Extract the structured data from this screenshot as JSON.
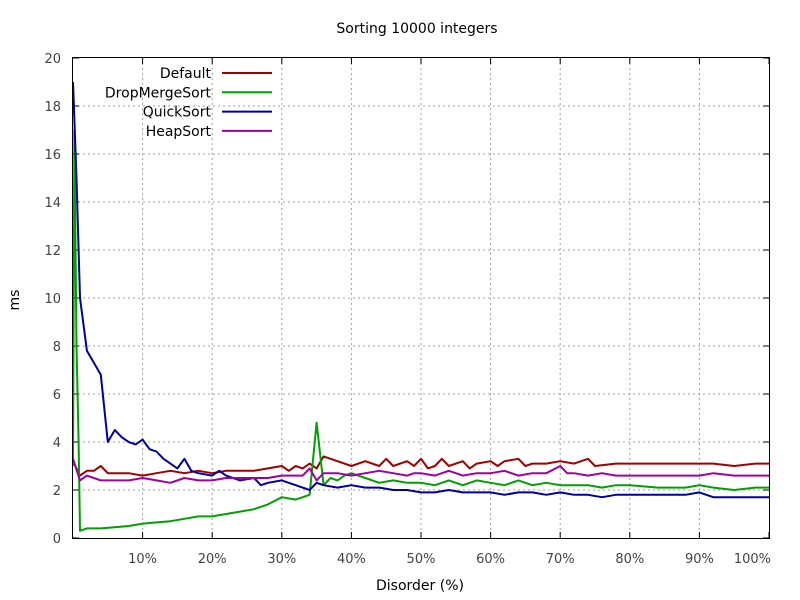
{
  "chart_data": {
    "type": "line",
    "title": "Sorting 10000 integers",
    "xlabel": "Disorder (%)",
    "ylabel": "ms",
    "xlim": [
      0,
      100
    ],
    "ylim": [
      0,
      20
    ],
    "grid": true,
    "legend_position": "top-left",
    "x_ticks": [
      10,
      20,
      30,
      40,
      50,
      60,
      70,
      80,
      90,
      100
    ],
    "x_tick_labels": [
      "10%",
      "20%",
      "30%",
      "40%",
      "50%",
      "60%",
      "70%",
      "80%",
      "90%",
      "100%"
    ],
    "y_ticks": [
      0,
      2,
      4,
      6,
      8,
      10,
      12,
      14,
      16,
      18,
      20
    ],
    "y_tick_labels": [
      "0",
      "2",
      "4",
      "6",
      "8",
      "10",
      "12",
      "14",
      "16",
      "18",
      "20"
    ],
    "series": [
      {
        "name": "Default",
        "color": "#a00000",
        "points": [
          [
            0,
            3.2
          ],
          [
            1,
            2.6
          ],
          [
            2,
            2.8
          ],
          [
            3,
            2.8
          ],
          [
            4,
            3.0
          ],
          [
            5,
            2.7
          ],
          [
            6,
            2.7
          ],
          [
            8,
            2.7
          ],
          [
            10,
            2.6
          ],
          [
            12,
            2.7
          ],
          [
            14,
            2.8
          ],
          [
            16,
            2.7
          ],
          [
            18,
            2.8
          ],
          [
            20,
            2.7
          ],
          [
            22,
            2.8
          ],
          [
            24,
            2.8
          ],
          [
            26,
            2.8
          ],
          [
            28,
            2.9
          ],
          [
            30,
            3.0
          ],
          [
            31,
            2.8
          ],
          [
            32,
            3.0
          ],
          [
            33,
            2.9
          ],
          [
            34,
            3.1
          ],
          [
            35,
            2.9
          ],
          [
            36,
            3.4
          ],
          [
            38,
            3.2
          ],
          [
            40,
            3.0
          ],
          [
            42,
            3.2
          ],
          [
            44,
            3.0
          ],
          [
            45,
            3.3
          ],
          [
            46,
            3.0
          ],
          [
            48,
            3.2
          ],
          [
            49,
            3.0
          ],
          [
            50,
            3.3
          ],
          [
            51,
            2.9
          ],
          [
            52,
            3.0
          ],
          [
            53,
            3.3
          ],
          [
            54,
            3.0
          ],
          [
            56,
            3.2
          ],
          [
            57,
            2.9
          ],
          [
            58,
            3.1
          ],
          [
            60,
            3.2
          ],
          [
            61,
            3.0
          ],
          [
            62,
            3.2
          ],
          [
            64,
            3.3
          ],
          [
            65,
            3.0
          ],
          [
            66,
            3.1
          ],
          [
            68,
            3.1
          ],
          [
            70,
            3.2
          ],
          [
            72,
            3.1
          ],
          [
            74,
            3.3
          ],
          [
            75,
            3.0
          ],
          [
            78,
            3.1
          ],
          [
            80,
            3.1
          ],
          [
            85,
            3.1
          ],
          [
            90,
            3.1
          ],
          [
            92,
            3.1
          ],
          [
            95,
            3.0
          ],
          [
            98,
            3.1
          ],
          [
            100,
            3.1
          ]
        ]
      },
      {
        "name": "DropMergeSort",
        "color": "#00a000",
        "points": [
          [
            0,
            3.0
          ],
          [
            0.2,
            17.0
          ],
          [
            0.5,
            8.0
          ],
          [
            0.8,
            4.0
          ],
          [
            1,
            0.3
          ],
          [
            2,
            0.4
          ],
          [
            4,
            0.4
          ],
          [
            6,
            0.45
          ],
          [
            8,
            0.5
          ],
          [
            10,
            0.6
          ],
          [
            12,
            0.65
          ],
          [
            14,
            0.7
          ],
          [
            16,
            0.8
          ],
          [
            18,
            0.9
          ],
          [
            20,
            0.9
          ],
          [
            22,
            1.0
          ],
          [
            24,
            1.1
          ],
          [
            26,
            1.2
          ],
          [
            28,
            1.4
          ],
          [
            30,
            1.7
          ],
          [
            32,
            1.6
          ],
          [
            33,
            1.7
          ],
          [
            34,
            1.8
          ],
          [
            35,
            4.8
          ],
          [
            36,
            2.2
          ],
          [
            37,
            2.5
          ],
          [
            38,
            2.4
          ],
          [
            39,
            2.6
          ],
          [
            40,
            2.7
          ],
          [
            42,
            2.5
          ],
          [
            44,
            2.3
          ],
          [
            46,
            2.4
          ],
          [
            48,
            2.3
          ],
          [
            50,
            2.3
          ],
          [
            52,
            2.2
          ],
          [
            54,
            2.4
          ],
          [
            56,
            2.2
          ],
          [
            58,
            2.4
          ],
          [
            60,
            2.3
          ],
          [
            62,
            2.2
          ],
          [
            64,
            2.4
          ],
          [
            66,
            2.2
          ],
          [
            68,
            2.3
          ],
          [
            70,
            2.2
          ],
          [
            72,
            2.2
          ],
          [
            74,
            2.2
          ],
          [
            76,
            2.1
          ],
          [
            78,
            2.2
          ],
          [
            80,
            2.2
          ],
          [
            84,
            2.1
          ],
          [
            88,
            2.1
          ],
          [
            90,
            2.2
          ],
          [
            92,
            2.1
          ],
          [
            95,
            2.0
          ],
          [
            98,
            2.1
          ],
          [
            100,
            2.1
          ]
        ]
      },
      {
        "name": "QuickSort",
        "color": "#0000a0",
        "points": [
          [
            0,
            19.0
          ],
          [
            0.5,
            15.0
          ],
          [
            1,
            10.0
          ],
          [
            2,
            7.8
          ],
          [
            3,
            7.3
          ],
          [
            4,
            6.8
          ],
          [
            5,
            4.0
          ],
          [
            6,
            4.5
          ],
          [
            7,
            4.2
          ],
          [
            8,
            4.0
          ],
          [
            9,
            3.9
          ],
          [
            10,
            4.1
          ],
          [
            11,
            3.7
          ],
          [
            12,
            3.6
          ],
          [
            13,
            3.3
          ],
          [
            14,
            3.1
          ],
          [
            15,
            2.9
          ],
          [
            16,
            3.3
          ],
          [
            17,
            2.8
          ],
          [
            18,
            2.7
          ],
          [
            20,
            2.6
          ],
          [
            21,
            2.8
          ],
          [
            22,
            2.6
          ],
          [
            24,
            2.4
          ],
          [
            26,
            2.5
          ],
          [
            27,
            2.2
          ],
          [
            28,
            2.3
          ],
          [
            30,
            2.4
          ],
          [
            32,
            2.2
          ],
          [
            34,
            2.0
          ],
          [
            35,
            2.3
          ],
          [
            36,
            2.2
          ],
          [
            38,
            2.1
          ],
          [
            40,
            2.2
          ],
          [
            42,
            2.1
          ],
          [
            44,
            2.1
          ],
          [
            46,
            2.0
          ],
          [
            48,
            2.0
          ],
          [
            50,
            1.9
          ],
          [
            52,
            1.9
          ],
          [
            54,
            2.0
          ],
          [
            56,
            1.9
          ],
          [
            58,
            1.9
          ],
          [
            60,
            1.9
          ],
          [
            62,
            1.8
          ],
          [
            64,
            1.9
          ],
          [
            66,
            1.9
          ],
          [
            68,
            1.8
          ],
          [
            70,
            1.9
          ],
          [
            72,
            1.8
          ],
          [
            74,
            1.8
          ],
          [
            76,
            1.7
          ],
          [
            78,
            1.8
          ],
          [
            80,
            1.8
          ],
          [
            84,
            1.8
          ],
          [
            88,
            1.8
          ],
          [
            90,
            1.9
          ],
          [
            92,
            1.7
          ],
          [
            95,
            1.7
          ],
          [
            98,
            1.7
          ],
          [
            100,
            1.7
          ]
        ]
      },
      {
        "name": "HeapSort",
        "color": "#a000a0",
        "points": [
          [
            0,
            3.3
          ],
          [
            1,
            2.4
          ],
          [
            2,
            2.6
          ],
          [
            3,
            2.5
          ],
          [
            4,
            2.4
          ],
          [
            6,
            2.4
          ],
          [
            8,
            2.4
          ],
          [
            10,
            2.5
          ],
          [
            12,
            2.4
          ],
          [
            14,
            2.3
          ],
          [
            16,
            2.5
          ],
          [
            18,
            2.4
          ],
          [
            20,
            2.4
          ],
          [
            22,
            2.5
          ],
          [
            24,
            2.5
          ],
          [
            26,
            2.5
          ],
          [
            28,
            2.5
          ],
          [
            30,
            2.6
          ],
          [
            32,
            2.6
          ],
          [
            33,
            2.6
          ],
          [
            34,
            2.9
          ],
          [
            35,
            2.4
          ],
          [
            36,
            2.7
          ],
          [
            38,
            2.7
          ],
          [
            40,
            2.6
          ],
          [
            42,
            2.7
          ],
          [
            44,
            2.8
          ],
          [
            46,
            2.7
          ],
          [
            48,
            2.6
          ],
          [
            49,
            2.7
          ],
          [
            50,
            2.7
          ],
          [
            52,
            2.6
          ],
          [
            54,
            2.8
          ],
          [
            56,
            2.6
          ],
          [
            58,
            2.7
          ],
          [
            60,
            2.7
          ],
          [
            62,
            2.8
          ],
          [
            64,
            2.6
          ],
          [
            66,
            2.7
          ],
          [
            68,
            2.7
          ],
          [
            70,
            3.0
          ],
          [
            71,
            2.7
          ],
          [
            72,
            2.7
          ],
          [
            74,
            2.6
          ],
          [
            76,
            2.7
          ],
          [
            78,
            2.6
          ],
          [
            80,
            2.6
          ],
          [
            84,
            2.6
          ],
          [
            88,
            2.6
          ],
          [
            90,
            2.6
          ],
          [
            92,
            2.7
          ],
          [
            95,
            2.6
          ],
          [
            98,
            2.6
          ],
          [
            100,
            2.6
          ]
        ]
      }
    ]
  }
}
